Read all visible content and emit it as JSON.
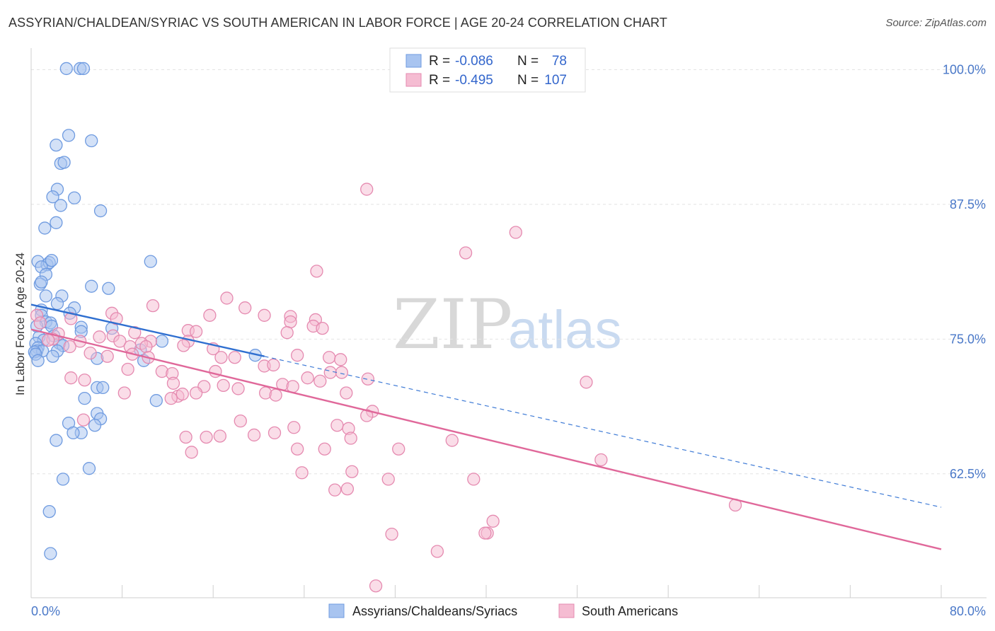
{
  "chart_data": {
    "type": "scatter",
    "title": "ASSYRIAN/CHALDEAN/SYRIAC VS SOUTH AMERICAN IN LABOR FORCE | AGE 20-24 CORRELATION CHART",
    "source": "Source: ZipAtlas.com",
    "ylabel": "In Labor Force | Age 20-24",
    "xlim": [
      0,
      80
    ],
    "ylim": [
      51,
      102
    ],
    "x_tick_labels": [
      "0.0%",
      "80.0%"
    ],
    "y_ticks": [
      {
        "value": 100.0,
        "label": "100.0%"
      },
      {
        "value": 87.5,
        "label": "87.5%"
      },
      {
        "value": 75.0,
        "label": "75.0%"
      },
      {
        "value": 62.5,
        "label": "62.5%"
      }
    ],
    "watermark": {
      "zip": "ZIP",
      "atlas": "atlas"
    },
    "legend": [
      {
        "r_label": "R =",
        "r_value": "-0.086",
        "n_label": "N =",
        "n_value": "78"
      },
      {
        "r_label": "R =",
        "r_value": "-0.495",
        "n_label": "N =",
        "n_value": "107"
      }
    ],
    "series": [
      {
        "name": "Assyrians/Chaldeans/Syriacs",
        "color": "#6f9be0",
        "fill": "#a8c4f0",
        "trend": {
          "x0": 0,
          "y0": 78.2,
          "x1": 20.5,
          "y1": 73.4,
          "dash_x1": 80,
          "dash_y1": 59.4
        },
        "points": [
          [
            3.1,
            100.1
          ],
          [
            4.3,
            100.1
          ],
          [
            4.6,
            100.1
          ],
          [
            3.3,
            93.9
          ],
          [
            2.2,
            93.0
          ],
          [
            5.3,
            93.4
          ],
          [
            2.6,
            91.3
          ],
          [
            2.9,
            91.4
          ],
          [
            2.3,
            88.9
          ],
          [
            1.9,
            88.2
          ],
          [
            2.6,
            87.4
          ],
          [
            3.8,
            88.1
          ],
          [
            6.1,
            86.9
          ],
          [
            2.2,
            85.8
          ],
          [
            1.2,
            85.3
          ],
          [
            0.6,
            82.2
          ],
          [
            1.4,
            81.9
          ],
          [
            1.6,
            82.1
          ],
          [
            1.8,
            82.3
          ],
          [
            10.5,
            82.2
          ],
          [
            0.9,
            81.7
          ],
          [
            1.3,
            81.0
          ],
          [
            0.8,
            80.1
          ],
          [
            0.9,
            80.3
          ],
          [
            5.3,
            79.9
          ],
          [
            6.8,
            79.7
          ],
          [
            1.3,
            79.0
          ],
          [
            2.7,
            79.0
          ],
          [
            2.3,
            78.3
          ],
          [
            3.8,
            77.9
          ],
          [
            0.9,
            77.7
          ],
          [
            3.4,
            77.4
          ],
          [
            0.9,
            77.2
          ],
          [
            1.3,
            76.6
          ],
          [
            1.7,
            76.5
          ],
          [
            0.5,
            76.2
          ],
          [
            1.8,
            76.2
          ],
          [
            4.4,
            76.1
          ],
          [
            7.1,
            76.0
          ],
          [
            4.4,
            75.7
          ],
          [
            2.0,
            75.3
          ],
          [
            0.7,
            75.2
          ],
          [
            1.1,
            74.9
          ],
          [
            11.5,
            74.8
          ],
          [
            2.5,
            74.6
          ],
          [
            0.4,
            74.6
          ],
          [
            0.6,
            74.2
          ],
          [
            2.8,
            74.4
          ],
          [
            0.5,
            73.9
          ],
          [
            1.0,
            73.9
          ],
          [
            0.3,
            73.8
          ],
          [
            2.3,
            73.9
          ],
          [
            0.4,
            73.6
          ],
          [
            9.6,
            74.0
          ],
          [
            1.9,
            73.4
          ],
          [
            19.7,
            73.5
          ],
          [
            5.8,
            73.2
          ],
          [
            0.6,
            73.0
          ],
          [
            9.9,
            73.0
          ],
          [
            5.8,
            70.5
          ],
          [
            6.3,
            70.5
          ],
          [
            4.7,
            69.5
          ],
          [
            11.0,
            69.3
          ],
          [
            5.8,
            68.1
          ],
          [
            6.1,
            67.6
          ],
          [
            3.3,
            67.2
          ],
          [
            5.6,
            67.0
          ],
          [
            4.4,
            66.3
          ],
          [
            3.7,
            66.3
          ],
          [
            2.2,
            65.6
          ],
          [
            5.1,
            63.0
          ],
          [
            2.8,
            62.0
          ],
          [
            1.6,
            59.0
          ],
          [
            1.7,
            55.1
          ]
        ]
      },
      {
        "name": "South Americans",
        "color": "#e58ab0",
        "fill": "#f5bcd2",
        "trend": {
          "x0": 0,
          "y0": 75.9,
          "x1": 80,
          "y1": 55.5
        },
        "points": [
          [
            29.5,
            88.9
          ],
          [
            42.6,
            84.9
          ],
          [
            38.2,
            83.0
          ],
          [
            25.1,
            81.3
          ],
          [
            17.2,
            78.8
          ],
          [
            10.7,
            78.1
          ],
          [
            18.8,
            77.9
          ],
          [
            7.1,
            77.4
          ],
          [
            15.7,
            77.2
          ],
          [
            20.5,
            77.2
          ],
          [
            22.8,
            77.1
          ],
          [
            25.0,
            76.8
          ],
          [
            3.5,
            76.9
          ],
          [
            7.5,
            76.9
          ],
          [
            0.5,
            77.2
          ],
          [
            0.8,
            76.5
          ],
          [
            22.8,
            76.6
          ],
          [
            24.8,
            76.2
          ],
          [
            25.6,
            76.0
          ],
          [
            13.8,
            75.8
          ],
          [
            14.5,
            75.7
          ],
          [
            22.5,
            75.6
          ],
          [
            9.1,
            75.6
          ],
          [
            7.2,
            75.3
          ],
          [
            2.4,
            75.5
          ],
          [
            1.9,
            75.0
          ],
          [
            6.0,
            75.2
          ],
          [
            1.5,
            74.9
          ],
          [
            4.3,
            74.8
          ],
          [
            7.8,
            74.8
          ],
          [
            10.5,
            74.8
          ],
          [
            13.8,
            74.8
          ],
          [
            9.7,
            74.6
          ],
          [
            8.7,
            74.3
          ],
          [
            13.4,
            74.4
          ],
          [
            3.4,
            74.3
          ],
          [
            16.0,
            74.1
          ],
          [
            10.1,
            74.3
          ],
          [
            5.2,
            73.7
          ],
          [
            6.7,
            73.4
          ],
          [
            8.9,
            73.6
          ],
          [
            10.3,
            73.3
          ],
          [
            16.7,
            73.3
          ],
          [
            17.9,
            73.3
          ],
          [
            20.5,
            72.5
          ],
          [
            21.3,
            72.6
          ],
          [
            23.4,
            73.5
          ],
          [
            26.2,
            73.3
          ],
          [
            27.2,
            73.1
          ],
          [
            8.5,
            72.2
          ],
          [
            11.5,
            72.0
          ],
          [
            16.2,
            72.0
          ],
          [
            12.4,
            71.8
          ],
          [
            26.3,
            71.9
          ],
          [
            27.3,
            71.9
          ],
          [
            3.5,
            71.4
          ],
          [
            4.7,
            71.2
          ],
          [
            12.5,
            70.9
          ],
          [
            24.3,
            71.4
          ],
          [
            25.4,
            71.1
          ],
          [
            29.6,
            71.3
          ],
          [
            16.9,
            70.7
          ],
          [
            22.1,
            70.8
          ],
          [
            23.0,
            70.6
          ],
          [
            48.8,
            71.0
          ],
          [
            15.2,
            70.6
          ],
          [
            18.2,
            70.4
          ],
          [
            8.2,
            70.0
          ],
          [
            14.5,
            70.0
          ],
          [
            20.6,
            70.0
          ],
          [
            27.7,
            70.0
          ],
          [
            12.9,
            69.7
          ],
          [
            12.3,
            69.5
          ],
          [
            13.3,
            69.9
          ],
          [
            21.5,
            69.8
          ],
          [
            30.0,
            68.3
          ],
          [
            29.5,
            67.9
          ],
          [
            18.4,
            67.4
          ],
          [
            4.6,
            67.5
          ],
          [
            26.9,
            67.0
          ],
          [
            23.1,
            66.8
          ],
          [
            27.9,
            66.7
          ],
          [
            28.1,
            65.8
          ],
          [
            37.0,
            65.6
          ],
          [
            19.6,
            66.1
          ],
          [
            21.4,
            66.3
          ],
          [
            15.4,
            65.9
          ],
          [
            13.6,
            65.9
          ],
          [
            16.6,
            66.0
          ],
          [
            23.4,
            64.8
          ],
          [
            25.8,
            64.8
          ],
          [
            14.1,
            64.5
          ],
          [
            32.3,
            64.8
          ],
          [
            50.1,
            63.8
          ],
          [
            23.8,
            62.6
          ],
          [
            28.2,
            62.7
          ],
          [
            31.4,
            62.0
          ],
          [
            38.9,
            62.0
          ],
          [
            27.8,
            61.1
          ],
          [
            26.7,
            61.0
          ],
          [
            61.9,
            59.6
          ],
          [
            40.6,
            58.1
          ],
          [
            40.1,
            57.0
          ],
          [
            39.9,
            57.0
          ],
          [
            31.7,
            56.9
          ],
          [
            35.7,
            55.3
          ],
          [
            30.3,
            52.1
          ]
        ]
      }
    ]
  }
}
